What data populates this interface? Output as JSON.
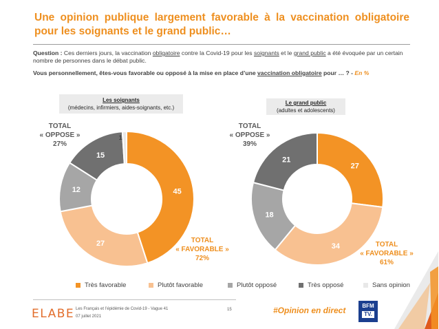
{
  "title": "Une opinion publique largement favorable à la vaccination obligatoire pour les soignants et le grand public…",
  "question": {
    "label": "Question :",
    "t1": " Ces derniers jours, la vaccination ",
    "u1": "obligatoire",
    "t2": " contre la Covid-19 pour les ",
    "u2": "soignants",
    "t3": " et le ",
    "u3": "grand public",
    "t4": " a été évoquée par un certain nombre de personnes dans le débat public.",
    "q1": "Vous personnellement, êtes-vous favorable ou opposé à la mise en place d’une ",
    "qu": "vaccination obligatoire",
    "q2": " pour … ? - ",
    "unit": "En %"
  },
  "panels": {
    "soignants": {
      "title": "Les soignants",
      "subtitle": "(médecins, infirmiers, aides-soignants, etc.)"
    },
    "public": {
      "title": "Le grand public",
      "subtitle": "(adultes et adolescents)"
    }
  },
  "totals": {
    "soignants_oppose": {
      "l1": "TOTAL",
      "l2": "« OPPOSE »",
      "l3": "27%"
    },
    "soignants_favorable": {
      "l1": "TOTAL",
      "l2": "« FAVORABLE »",
      "l3": "72%"
    },
    "public_oppose": {
      "l1": "TOTAL",
      "l2": "« OPPOSE »",
      "l3": "39%"
    },
    "public_favorable": {
      "l1": "TOTAL",
      "l2": "« FAVORABLE »",
      "l3": "61%"
    }
  },
  "chart_data": [
    {
      "type": "pie",
      "donut": true,
      "title": "Les soignants",
      "subtitle": "(médecins, infirmiers, aides-soignants, etc.)",
      "labels": [
        "Très favorable",
        "Plutôt favorable",
        "Plutôt opposé",
        "Très opposé",
        "Sans opinion"
      ],
      "values": [
        45,
        27,
        12,
        15,
        1
      ],
      "colors": [
        "#f39325",
        "#f8c191",
        "#a6a6a6",
        "#707070",
        "#e8e8e8"
      ]
    },
    {
      "type": "pie",
      "donut": true,
      "title": "Le grand public",
      "subtitle": "(adultes et adolescents)",
      "labels": [
        "Très favorable",
        "Plutôt favorable",
        "Plutôt opposé",
        "Très opposé"
      ],
      "values": [
        27,
        34,
        18,
        21
      ],
      "colors": [
        "#f39325",
        "#f8c191",
        "#a6a6a6",
        "#707070"
      ]
    }
  ],
  "legend": [
    {
      "label": "Très favorable",
      "color": "#f39325"
    },
    {
      "label": "Plutôt favorable",
      "color": "#f8c191"
    },
    {
      "label": "Plutôt opposé",
      "color": "#a6a6a6"
    },
    {
      "label": "Très opposé",
      "color": "#707070"
    },
    {
      "label": "Sans opinion",
      "color": "#e8e8e8"
    }
  ],
  "footer": {
    "logo": "ELABE",
    "source": "Les Français et l’épidémie de Covid-19 - Vague 41",
    "date": "07 juillet 2021",
    "page": "15",
    "hashtag": "#Opinion en direct",
    "brand_top": "BFM",
    "brand_bottom": "TV."
  }
}
